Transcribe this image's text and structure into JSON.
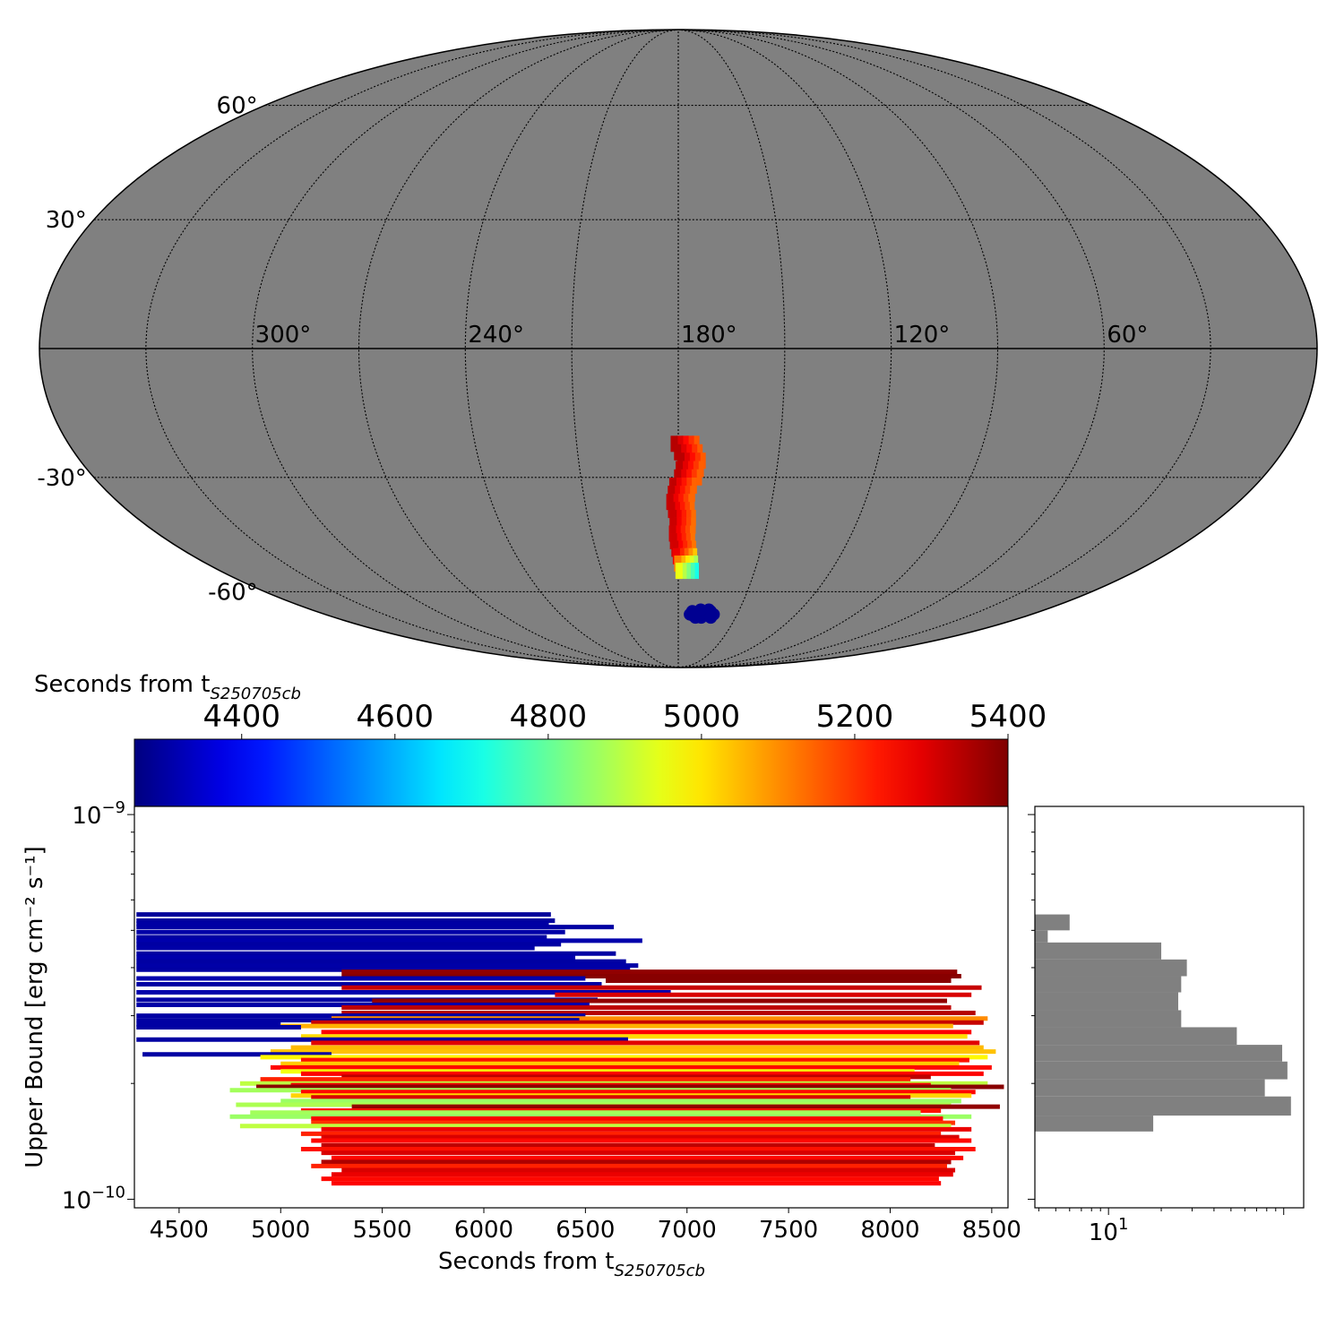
{
  "colors": {
    "sky_fill": "#808080",
    "hist_fill": "#808080",
    "grid": "#000000",
    "colormap": [
      "#00007f",
      "#0000ff",
      "#007fff",
      "#00ffff",
      "#7fff7f",
      "#ffff00",
      "#ff7f00",
      "#ff0000",
      "#7f0000"
    ]
  },
  "chart_data": [
    {
      "type": "scatter",
      "projection": "mollweide",
      "ra_tick_labels": [
        "300°",
        "240°",
        "180°",
        "120°",
        "60°"
      ],
      "ra_ticks": [
        300,
        240,
        180,
        120,
        60
      ],
      "dec_tick_labels": [
        "60°",
        "30°",
        "-30°",
        "-60°"
      ],
      "dec_ticks": [
        60,
        30,
        -30,
        -60
      ],
      "ra_direction": "increasing-left",
      "grid": true,
      "regions": [
        {
          "label": "early",
          "color_value": 4280,
          "points": [
            [
              168,
              -66.5
            ],
            [
              170,
              -67
            ],
            [
              172,
              -67.5
            ],
            [
              174,
              -67
            ],
            [
              166,
              -67
            ],
            [
              164,
              -66
            ],
            [
              162,
              -67
            ],
            [
              168,
              -68
            ],
            [
              171,
              -68
            ],
            [
              165,
              -65.5
            ],
            [
              169,
              -65.5
            ],
            [
              173,
              -66
            ],
            [
              163,
              -68
            ]
          ]
        },
        {
          "label": "strip",
          "color_value": 5250,
          "points": [
            [
              178,
              -22
            ],
            [
              177,
              -24
            ],
            [
              176,
              -26
            ],
            [
              176.5,
              -28
            ],
            [
              177,
              -30
            ],
            [
              178.5,
              -32
            ],
            [
              179,
              -34
            ],
            [
              179.5,
              -36
            ],
            [
              179,
              -38
            ],
            [
              178.5,
              -40
            ],
            [
              178.5,
              -42
            ],
            [
              178.8,
              -44
            ],
            [
              178.5,
              -46
            ],
            [
              178,
              -48
            ],
            [
              177.5,
              -50
            ],
            [
              177,
              -52
            ],
            [
              176.5,
              -54
            ]
          ]
        }
      ]
    },
    {
      "type": "bar",
      "orientation": "horizontal-segments",
      "xlabel": "Seconds from t",
      "xlabel_sub": "S250705cb",
      "ylabel": "Upper Bound [erg cm⁻² s⁻¹]",
      "x_tick_labels": [
        "4500",
        "5000",
        "5500",
        "6000",
        "6500",
        "7000",
        "7500",
        "8000",
        "8500"
      ],
      "x_ticks": [
        4500,
        5000,
        5500,
        6000,
        6500,
        7000,
        7500,
        8000,
        8500
      ],
      "xlim": [
        4280,
        8580
      ],
      "y_scale": "log",
      "ylim": [
        9.5e-11,
        1.05e-09
      ],
      "y_tick_labels": [
        {
          "base": "10",
          "exp": "−9"
        },
        {
          "base": "10",
          "exp": "−10"
        }
      ],
      "y_ticks": [
        1e-09,
        1e-10
      ],
      "colorbar": {
        "label": "Seconds from t",
        "label_sub": "S250705cb",
        "range": [
          4260,
          5400
        ],
        "tick_labels": [
          "4400",
          "4600",
          "4800",
          "5000",
          "5200",
          "5400"
        ],
        "ticks": [
          4400,
          4600,
          4800,
          5000,
          5200,
          5400
        ]
      },
      "segments": [
        [
          4290,
          6330,
          5.5e-10,
          4290
        ],
        [
          4290,
          6350,
          5.3e-10,
          4295
        ],
        [
          4290,
          6320,
          5.2e-10,
          4300
        ],
        [
          4290,
          6640,
          5.1e-10,
          4300
        ],
        [
          4290,
          6400,
          4.95e-10,
          4305
        ],
        [
          4290,
          6310,
          4.8e-10,
          4300
        ],
        [
          4290,
          6780,
          4.7e-10,
          4310
        ],
        [
          4290,
          6380,
          4.6e-10,
          4300
        ],
        [
          4290,
          6250,
          4.5e-10,
          4305
        ],
        [
          4290,
          6650,
          4.35e-10,
          4300
        ],
        [
          4290,
          6450,
          4.25e-10,
          4310
        ],
        [
          4290,
          6700,
          4.15e-10,
          4300
        ],
        [
          4290,
          6760,
          4.05e-10,
          4305
        ],
        [
          4290,
          6720,
          3.95e-10,
          4300
        ],
        [
          5300,
          8330,
          3.9e-10,
          5380
        ],
        [
          5300,
          8350,
          3.8e-10,
          5390
        ],
        [
          4290,
          6500,
          3.75e-10,
          4310
        ],
        [
          6600,
          8300,
          3.7e-10,
          5390
        ],
        [
          4290,
          6580,
          3.62e-10,
          4300
        ],
        [
          5300,
          8450,
          3.55e-10,
          5320
        ],
        [
          4290,
          6920,
          3.45e-10,
          4310
        ],
        [
          6350,
          8400,
          3.4e-10,
          5300
        ],
        [
          4290,
          6560,
          3.3e-10,
          4300
        ],
        [
          5450,
          8280,
          3.28e-10,
          5380
        ],
        [
          4290,
          6520,
          3.2e-10,
          4305
        ],
        [
          5300,
          8300,
          3.15e-10,
          5330
        ],
        [
          5300,
          8420,
          3.05e-10,
          5340
        ],
        [
          4290,
          6500,
          3e-10,
          4300
        ],
        [
          5250,
          8480,
          2.95e-10,
          5100
        ],
        [
          4290,
          6470,
          2.92e-10,
          4300
        ],
        [
          5150,
          8460,
          2.88e-10,
          5320
        ],
        [
          4290,
          5000,
          2.85e-10,
          4300
        ],
        [
          5000,
          8310,
          2.82e-10,
          5060
        ],
        [
          4290,
          5100,
          2.8e-10,
          4300
        ],
        [
          5200,
          8400,
          2.72e-10,
          5260
        ],
        [
          5100,
          8380,
          2.65e-10,
          5010
        ],
        [
          4290,
          6710,
          2.6e-10,
          4300
        ],
        [
          5150,
          8440,
          2.55e-10,
          5290
        ],
        [
          5050,
          8460,
          2.48e-10,
          5050
        ],
        [
          4950,
          8520,
          2.42e-10,
          5040
        ],
        [
          4320,
          5250,
          2.38e-10,
          4300
        ],
        [
          4900,
          8480,
          2.34e-10,
          4980
        ],
        [
          5100,
          8390,
          2.3e-10,
          5240
        ],
        [
          5000,
          8340,
          2.25e-10,
          5030
        ],
        [
          4950,
          8500,
          2.2e-10,
          5250
        ],
        [
          5000,
          8120,
          2.15e-10,
          4960
        ],
        [
          5100,
          8460,
          2.12e-10,
          5260
        ],
        [
          5300,
          8200,
          2.08e-10,
          5330
        ],
        [
          4900,
          8100,
          2.05e-10,
          5220
        ],
        [
          4800,
          8480,
          2e-10,
          4900
        ],
        [
          5050,
          8200,
          1.98e-10,
          5270
        ],
        [
          4880,
          8560,
          1.96e-10,
          5390
        ],
        [
          4750,
          8300,
          1.92e-10,
          4870
        ],
        [
          5100,
          8420,
          1.9e-10,
          5250
        ],
        [
          5050,
          8400,
          1.86e-10,
          5020
        ],
        [
          5150,
          8100,
          1.84e-10,
          5300
        ],
        [
          5000,
          8350,
          1.8e-10,
          4860
        ],
        [
          4780,
          8300,
          1.76e-10,
          4880
        ],
        [
          5350,
          8540,
          1.74e-10,
          5380
        ],
        [
          5100,
          8250,
          1.7e-10,
          5240
        ],
        [
          4850,
          8150,
          1.68e-10,
          4870
        ],
        [
          4750,
          8400,
          1.64e-10,
          4860
        ],
        [
          5150,
          8260,
          1.62e-10,
          5260
        ],
        [
          5150,
          8320,
          1.58e-10,
          5200
        ],
        [
          4800,
          8300,
          1.55e-10,
          4900
        ],
        [
          5200,
          8400,
          1.52e-10,
          5280
        ],
        [
          5100,
          8250,
          1.48e-10,
          5220
        ],
        [
          5200,
          8340,
          1.45e-10,
          5300
        ],
        [
          5150,
          8400,
          1.42e-10,
          5250
        ],
        [
          5200,
          8220,
          1.38e-10,
          5330
        ],
        [
          5100,
          8420,
          1.35e-10,
          5240
        ],
        [
          5200,
          8320,
          1.32e-10,
          5300
        ],
        [
          5250,
          8360,
          1.28e-10,
          5250
        ],
        [
          5200,
          8300,
          1.25e-10,
          5350
        ],
        [
          5150,
          8280,
          1.22e-10,
          5220
        ],
        [
          5300,
          8320,
          1.19e-10,
          5300
        ],
        [
          5250,
          8310,
          1.16e-10,
          5280
        ],
        [
          5200,
          8240,
          1.13e-10,
          5250
        ],
        [
          5250,
          8250,
          1.1e-10,
          5260
        ]
      ]
    },
    {
      "type": "bar",
      "orientation": "horizontal",
      "x_scale": "log",
      "x_tick_labels": [
        {
          "base": "10",
          "exp": "1"
        }
      ],
      "x_ticks": [
        10
      ],
      "xlim": [
        3.8,
        130
      ],
      "bins": [
        [
          5.5e-10,
          5e-10,
          6.0
        ],
        [
          5e-10,
          4.65e-10,
          4.5
        ],
        [
          4.65e-10,
          4.2e-10,
          20
        ],
        [
          4.2e-10,
          3.8e-10,
          28
        ],
        [
          3.8e-10,
          3.45e-10,
          26
        ],
        [
          3.45e-10,
          3.1e-10,
          25
        ],
        [
          3.1e-10,
          2.8e-10,
          26
        ],
        [
          2.8e-10,
          2.52e-10,
          54
        ],
        [
          2.52e-10,
          2.28e-10,
          98
        ],
        [
          2.28e-10,
          2.05e-10,
          105
        ],
        [
          2.05e-10,
          1.85e-10,
          78
        ],
        [
          1.85e-10,
          1.65e-10,
          110
        ],
        [
          1.65e-10,
          1.5e-10,
          18
        ]
      ]
    }
  ]
}
